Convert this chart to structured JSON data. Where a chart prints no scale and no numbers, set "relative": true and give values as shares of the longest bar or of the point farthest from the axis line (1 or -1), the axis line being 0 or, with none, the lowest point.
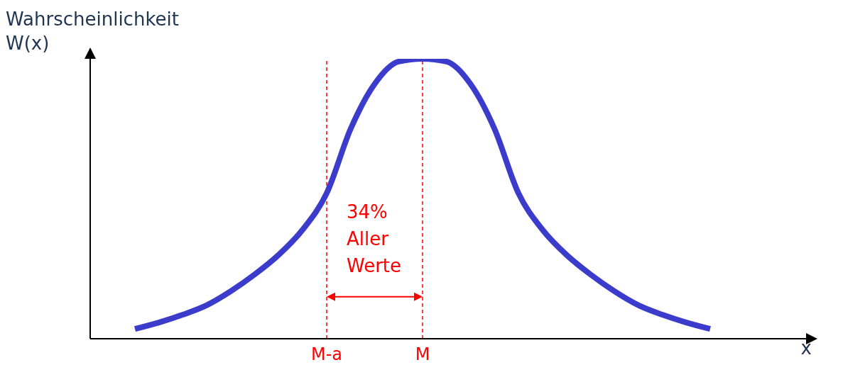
{
  "chart_data": {
    "type": "line",
    "relative": true,
    "ylabel": "Wahrscheinlichkeit\nW(x)",
    "xlabel": "x",
    "categories": [
      null,
      null,
      null,
      null,
      null,
      null,
      null,
      null,
      "M-a",
      null,
      null,
      null,
      "M",
      null,
      null,
      null,
      null,
      null,
      null,
      null,
      null,
      null,
      null,
      null,
      null
    ],
    "series": [
      {
        "color": "#3b3bcc",
        "values": [
          0.035,
          0.058,
          0.086,
          0.12,
          0.17,
          0.23,
          0.3,
          0.39,
          0.52,
          0.75,
          0.91,
          0.99,
          1,
          0.99,
          0.91,
          0.75,
          0.52,
          0.39,
          0.3,
          0.23,
          0.17,
          0.12,
          0.086,
          0.058,
          0.035
        ]
      }
    ],
    "ref_lines": [
      {
        "axis": "x",
        "value": "M-a",
        "color": "#ff0000",
        "line_style": "dashed"
      },
      {
        "axis": "x",
        "value": "M",
        "color": "#ff0000",
        "line_style": "dashed"
      }
    ],
    "annotations": [
      "34%\nAller\nWerte"
    ],
    "grid": false,
    "legend": false,
    "marker": "none",
    "line_style": "solid"
  }
}
